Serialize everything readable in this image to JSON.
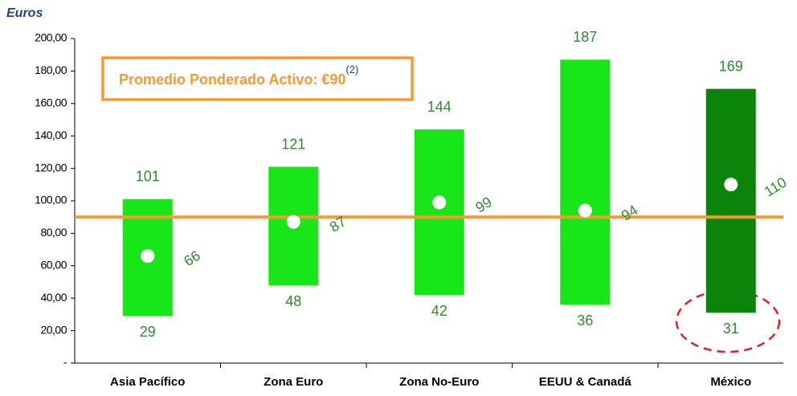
{
  "chart_data": {
    "type": "range",
    "y_label": "Euros",
    "categories": [
      "Asia Pacífico",
      "Zona Euro",
      "Zona No-Euro",
      "EEUU & Canadá",
      "México"
    ],
    "low": [
      29,
      48,
      42,
      36,
      31
    ],
    "high": [
      101,
      121,
      144,
      187,
      169
    ],
    "mean": [
      66,
      87,
      99,
      94,
      110
    ],
    "colors": [
      "#19e619",
      "#19e619",
      "#19e619",
      "#19e619",
      "#0a850a"
    ],
    "mean_color": "#ffffff",
    "label_color": "#2e8b2e",
    "reference": {
      "value": 90,
      "label": "Promedio Ponderado Activo: €90",
      "note": "(2)",
      "color": "#f7992f"
    },
    "ylim": [
      0,
      200
    ],
    "yticks": [
      {
        "value": 0,
        "label": "-"
      },
      {
        "value": 20,
        "label": "20,00"
      },
      {
        "value": 40,
        "label": "40,00"
      },
      {
        "value": 60,
        "label": "60,00"
      },
      {
        "value": 80,
        "label": "80,00"
      },
      {
        "value": 100,
        "label": "100,00"
      },
      {
        "value": 120,
        "label": "120,00"
      },
      {
        "value": 140,
        "label": "140,00"
      },
      {
        "value": 160,
        "label": "160,00"
      },
      {
        "value": 180,
        "label": "180,00"
      },
      {
        "value": 200,
        "label": "200,00"
      }
    ]
  }
}
